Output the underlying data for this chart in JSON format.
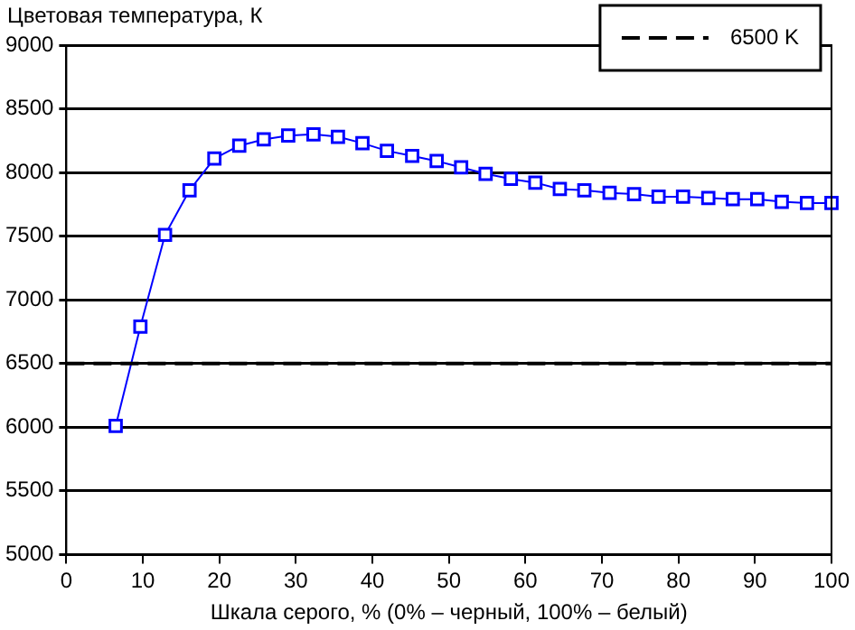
{
  "chart_data": {
    "type": "line",
    "ylabel": "Цветовая температура, К",
    "xlabel": "Шкала серого, % (0% – черный, 100% – белый)",
    "xlim": [
      0,
      100
    ],
    "xticks": [
      0,
      10,
      20,
      30,
      40,
      50,
      60,
      70,
      80,
      90,
      100
    ],
    "ylim": [
      5000,
      9000
    ],
    "yticks": [
      5000,
      5500,
      6000,
      6500,
      7000,
      7500,
      8000,
      8500,
      9000
    ],
    "grid": "y",
    "legend": "top right",
    "marker": "square",
    "line_style": "solid",
    "series": [
      {
        "color": "#0000ff",
        "x": [
          6.45,
          9.68,
          12.9,
          16.1,
          19.35,
          22.6,
          25.8,
          29.0,
          32.3,
          35.5,
          38.7,
          41.9,
          45.2,
          48.4,
          51.6,
          54.8,
          58.1,
          61.3,
          64.5,
          67.7,
          71.0,
          74.2,
          77.4,
          80.6,
          83.9,
          87.1,
          90.3,
          93.5,
          96.8,
          100
        ],
        "values": [
          6010,
          6790,
          7510,
          7860,
          8110,
          8210,
          8260,
          8290,
          8300,
          8280,
          8230,
          8170,
          8130,
          8090,
          8040,
          7990,
          7950,
          7920,
          7870,
          7860,
          7840,
          7830,
          7810,
          7810,
          7800,
          7790,
          7790,
          7770,
          7760,
          7760
        ]
      }
    ],
    "ref_lines": [
      {
        "axis": "y",
        "value": 6500,
        "label": "6500 K",
        "color": "#000000",
        "line_style": "dashed"
      }
    ]
  }
}
